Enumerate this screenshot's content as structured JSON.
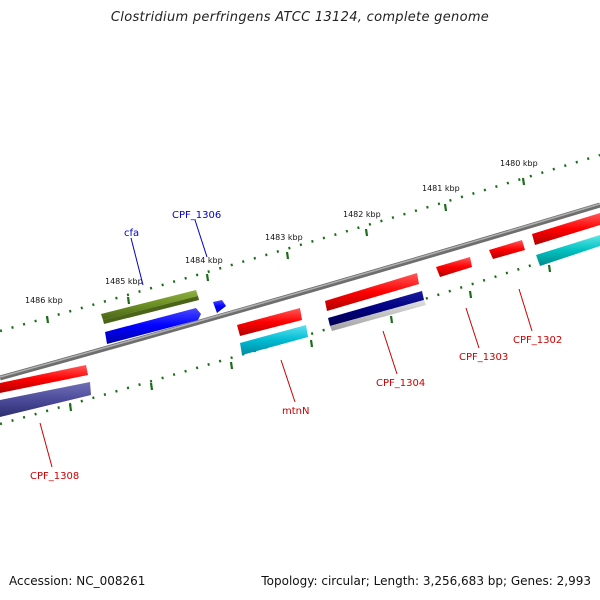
{
  "title": "Clostridium perfringens ATCC 13124, complete genome",
  "footer": {
    "accession": "Accession: NC_008261",
    "topology": "Topology: circular; Length: 3,256,683 bp; Genes: 2,993"
  },
  "scale_labels": [
    "1486 kbp",
    "1485 kbp",
    "1484 kbp",
    "1483 kbp",
    "1482 kbp",
    "1481 kbp",
    "1480 kbp"
  ],
  "gene_labels": [
    {
      "text": "cfa",
      "color": "#0000cc"
    },
    {
      "text": "CPF_1306",
      "color": "#0000cc"
    },
    {
      "text": "mtnN",
      "color": "#cc0000"
    },
    {
      "text": "CPF_1304",
      "color": "#cc0000"
    },
    {
      "text": "CPF_1303",
      "color": "#cc0000"
    },
    {
      "text": "CPF_1302",
      "color": "#cc0000"
    },
    {
      "text": "CPF_1308",
      "color": "#cc0000"
    }
  ],
  "colors": {
    "backbone": "#808080",
    "tick_dots": "#1a6e1a",
    "cds_forward": "#ff0000",
    "cds_reverse": "#0000ff",
    "olive": "#6b8e23",
    "cyan": "#00bfd0",
    "navy": "#000080",
    "slate": "#4b4b9a",
    "teal": "#00c0c0"
  }
}
